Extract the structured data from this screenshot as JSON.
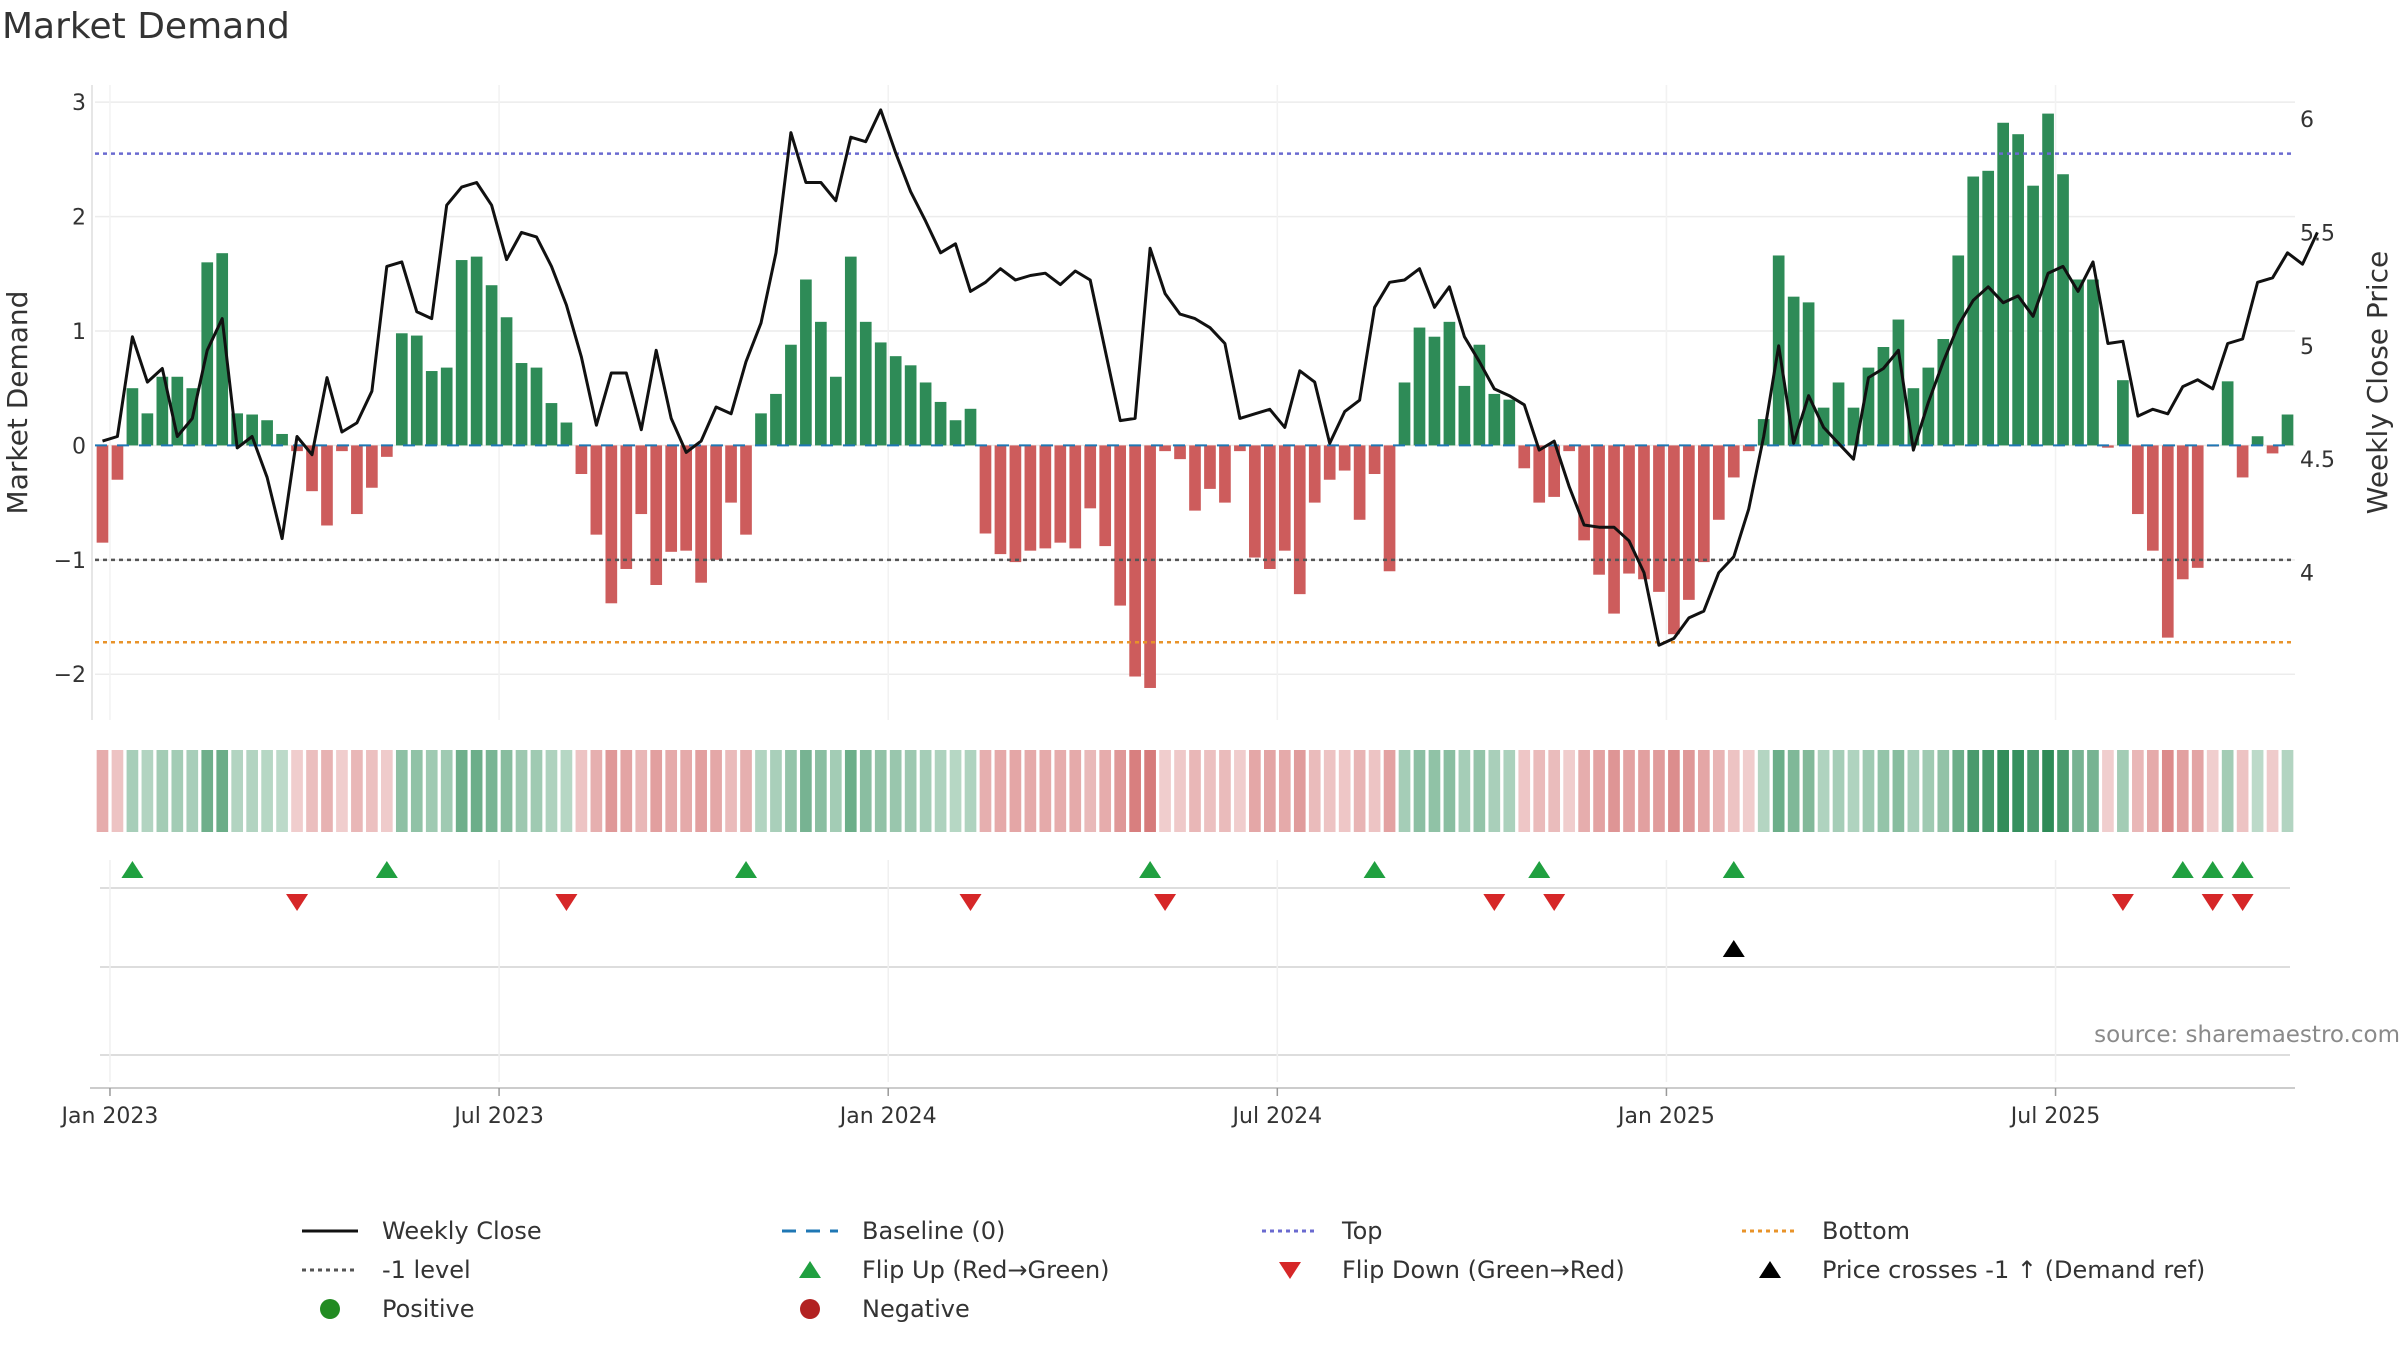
{
  "title": "Market Demand",
  "source": "source: sharemaestro.com",
  "colors": {
    "positive": "#2e8b57",
    "negative": "#cd5c5c",
    "close": "#111111",
    "baseline": "#1f77b4",
    "top": "#6a6ad0",
    "bottom": "#e8932a",
    "minus_one": "#555555",
    "flip_up": "#20a040",
    "flip_down": "#d62728",
    "cross": "#000000"
  },
  "chart_data": {
    "type": "bar",
    "title": "Market Demand",
    "ylabel": "Market Demand",
    "y2label": "Weekly Close Price",
    "ylim": [
      -2.4,
      3.15
    ],
    "y_ticks": [
      3,
      2,
      1,
      0,
      -1,
      -2
    ],
    "y_tick_labels": [
      "3",
      "2",
      "1",
      "0",
      "−1",
      "−2"
    ],
    "y2lim": [
      3.35,
      6.15
    ],
    "y2_ticks": [
      6,
      5.5,
      5,
      4.5,
      4
    ],
    "y2_tick_labels": [
      "6",
      "5.5",
      "5",
      "4.5",
      "4"
    ],
    "x_ticks": [
      "Jan 2023",
      "Jul 2023",
      "Jan 2024",
      "Jul 2024",
      "Jan 2025",
      "Jul 2025"
    ],
    "x_tick_weeks": [
      1,
      27,
      53,
      79,
      105,
      131
    ],
    "reference_lines": {
      "baseline": 0,
      "top": 2.55,
      "bottom": -1.72,
      "minus_one": -1
    },
    "demand": [
      -0.85,
      -0.3,
      0.5,
      0.28,
      0.6,
      0.6,
      0.5,
      1.6,
      1.68,
      0.28,
      0.27,
      0.22,
      0.1,
      -0.05,
      -0.4,
      -0.7,
      -0.05,
      -0.6,
      -0.37,
      -0.1,
      0.98,
      0.96,
      0.65,
      0.68,
      1.62,
      1.65,
      1.4,
      1.12,
      0.72,
      0.68,
      0.37,
      0.2,
      -0.25,
      -0.78,
      -1.38,
      -1.08,
      -0.6,
      -1.22,
      -0.93,
      -0.92,
      -1.2,
      -1.0,
      -0.5,
      -0.78,
      0.28,
      0.45,
      0.88,
      1.45,
      1.08,
      0.6,
      1.65,
      1.08,
      0.9,
      0.78,
      0.7,
      0.55,
      0.38,
      0.22,
      0.32,
      -0.77,
      -0.95,
      -1.02,
      -0.92,
      -0.9,
      -0.85,
      -0.9,
      -0.55,
      -0.88,
      -1.4,
      -2.02,
      -2.12,
      -0.05,
      -0.12,
      -0.57,
      -0.38,
      -0.5,
      -0.05,
      -0.98,
      -1.08,
      -0.92,
      -1.3,
      -0.5,
      -0.3,
      -0.22,
      -0.65,
      -0.25,
      -1.1,
      0.55,
      1.03,
      0.95,
      1.08,
      0.52,
      0.88,
      0.45,
      0.4,
      -0.2,
      -0.5,
      -0.45,
      -0.05,
      -0.83,
      -1.13,
      -1.47,
      -1.12,
      -1.17,
      -1.28,
      -1.65,
      -1.35,
      -1.02,
      -0.65,
      -0.28,
      -0.05,
      0.23,
      1.66,
      1.3,
      1.25,
      0.33,
      0.55,
      0.33,
      0.68,
      0.86,
      1.1,
      0.5,
      0.68,
      0.93,
      1.66,
      2.35,
      2.4,
      2.82,
      2.72,
      2.27,
      2.9,
      2.37,
      1.45,
      1.45,
      -0.02,
      0.57,
      -0.6,
      -0.92,
      -1.68,
      -1.17,
      -1.07,
      -0.01,
      0.56,
      -0.28,
      0.08,
      -0.07,
      0.27
    ],
    "weekly_close": [
      4.58,
      4.6,
      5.04,
      4.84,
      4.9,
      4.6,
      4.68,
      4.98,
      5.12,
      4.55,
      4.6,
      4.42,
      4.15,
      4.6,
      4.52,
      4.86,
      4.62,
      4.66,
      4.8,
      5.35,
      5.37,
      5.15,
      5.12,
      5.62,
      5.7,
      5.72,
      5.62,
      5.38,
      5.5,
      5.48,
      5.35,
      5.18,
      4.95,
      4.65,
      4.88,
      4.88,
      4.63,
      4.98,
      4.68,
      4.53,
      4.58,
      4.73,
      4.7,
      4.93,
      5.1,
      5.41,
      5.94,
      5.72,
      5.72,
      5.64,
      5.92,
      5.9,
      6.04,
      5.85,
      5.68,
      5.55,
      5.41,
      5.45,
      5.24,
      5.28,
      5.34,
      5.29,
      5.31,
      5.32,
      5.27,
      5.33,
      5.29,
      4.98,
      4.67,
      4.68,
      5.43,
      5.23,
      5.14,
      5.12,
      5.08,
      5.01,
      4.68,
      4.7,
      4.72,
      4.64,
      4.89,
      4.84,
      4.57,
      4.71,
      4.76,
      5.17,
      5.28,
      5.29,
      5.34,
      5.17,
      5.26,
      5.04,
      4.93,
      4.81,
      4.78,
      4.74,
      4.54,
      4.58,
      4.38,
      4.21,
      4.2,
      4.2,
      4.14,
      4.0,
      3.68,
      3.71,
      3.8,
      3.83,
      4.0,
      4.07,
      4.28,
      4.6,
      5.0,
      4.57,
      4.78,
      4.64,
      4.57,
      4.5,
      4.86,
      4.9,
      4.98,
      4.54,
      4.75,
      4.93,
      5.09,
      5.2,
      5.26,
      5.19,
      5.22,
      5.13,
      5.32,
      5.35,
      5.24,
      5.37,
      5.01,
      5.02,
      4.69,
      4.72,
      4.7,
      4.82,
      4.85,
      4.81,
      5.01,
      5.03,
      5.28,
      5.3,
      5.41,
      5.36,
      5.5
    ],
    "flip_up_weeks": [
      2,
      19,
      43,
      70,
      85,
      96,
      109,
      139,
      141,
      143
    ],
    "flip_down_weeks": [
      13,
      31,
      58,
      71,
      93,
      97,
      135,
      141,
      143
    ],
    "price_cross_weeks": [
      109
    ]
  },
  "legend": {
    "rows": [
      [
        "Weekly Close",
        "Baseline (0)",
        "Top",
        "Bottom"
      ],
      [
        "-1 level",
        "Flip Up (Red→Green)",
        "Flip Down (Green→Red)",
        "Price crosses -1 ↑ (Demand ref)"
      ],
      [
        "Positive",
        "Negative"
      ]
    ],
    "symbols": [
      [
        "line-solid",
        "line-dash",
        "line-dot-top",
        "line-dot-bottom"
      ],
      [
        "line-dot-grey",
        "triangle-up",
        "triangle-down",
        "triangle-up-black"
      ],
      [
        "circle-green",
        "circle-red"
      ]
    ]
  }
}
